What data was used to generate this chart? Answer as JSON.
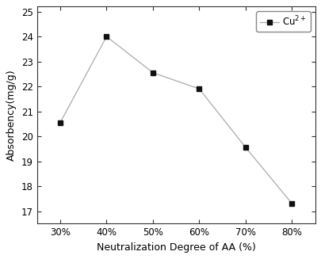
{
  "x_labels": [
    "30%",
    "40%",
    "50%",
    "60%",
    "70%",
    "80%"
  ],
  "x_values": [
    30,
    40,
    50,
    60,
    70,
    80
  ],
  "y_values": [
    20.55,
    24.0,
    22.55,
    21.9,
    19.55,
    17.3
  ],
  "xlabel": "Neutralization Degree of AA (%)",
  "ylabel": "Absorbency(mg/g)",
  "legend_label": "Cu$^{2+}$",
  "ylim": [
    16.5,
    25.2
  ],
  "yticks": [
    17,
    18,
    19,
    20,
    21,
    22,
    23,
    24,
    25
  ],
  "xlim": [
    25,
    85
  ],
  "line_color": "#aaaaaa",
  "marker_color": "#111111",
  "marker": "s",
  "marker_size": 4,
  "line_width": 0.9,
  "label_fontsize": 9,
  "tick_fontsize": 8.5,
  "legend_fontsize": 8.5,
  "background_color": "#ffffff"
}
